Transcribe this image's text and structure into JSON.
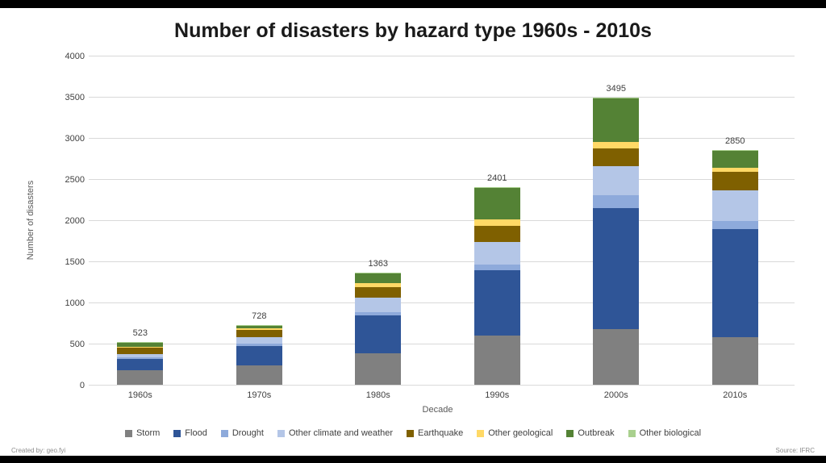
{
  "page": {
    "title": "Number of disasters by hazard type 1960s - 2010s"
  },
  "footer": {
    "left": "Created by: geo.fyi",
    "right": "Source: IFRC"
  },
  "chart_data": {
    "type": "bar",
    "stacked": true,
    "title": "Number of disasters by hazard type 1960s - 2010s",
    "xlabel": "Decade",
    "ylabel": "Number of disasters",
    "ylim": [
      0,
      4000
    ],
    "yticks": [
      0,
      500,
      1000,
      1500,
      2000,
      2500,
      3000,
      3500,
      4000
    ],
    "grid": true,
    "legend_position": "bottom",
    "categories": [
      "1960s",
      "1970s",
      "1980s",
      "1990s",
      "2000s",
      "2010s"
    ],
    "totals": [
      523,
      728,
      1363,
      2401,
      3495,
      2850
    ],
    "series": [
      {
        "name": "Storm",
        "color": "#808080",
        "values": [
          180,
          240,
          380,
          600,
          675,
          580
        ]
      },
      {
        "name": "Flood",
        "color": "#2F5597",
        "values": [
          130,
          230,
          460,
          790,
          1475,
          1310
        ]
      },
      {
        "name": "Drought",
        "color": "#8EAADB",
        "values": [
          25,
          30,
          45,
          70,
          150,
          105
        ]
      },
      {
        "name": "Other climate and weather",
        "color": "#B4C6E7",
        "values": [
          40,
          80,
          170,
          280,
          360,
          370
        ]
      },
      {
        "name": "Earthquake",
        "color": "#7F6000",
        "values": [
          80,
          85,
          135,
          195,
          215,
          220
        ]
      },
      {
        "name": "Other geological",
        "color": "#FFD966",
        "values": [
          10,
          18,
          45,
          70,
          80,
          50
        ]
      },
      {
        "name": "Outbreak",
        "color": "#548235",
        "values": [
          55,
          42,
          125,
          390,
          535,
          213
        ]
      },
      {
        "name": "Other biological",
        "color": "#A9D08E",
        "values": [
          3,
          3,
          3,
          6,
          5,
          2
        ]
      }
    ],
    "gridline_color": "#D9D9D9"
  }
}
